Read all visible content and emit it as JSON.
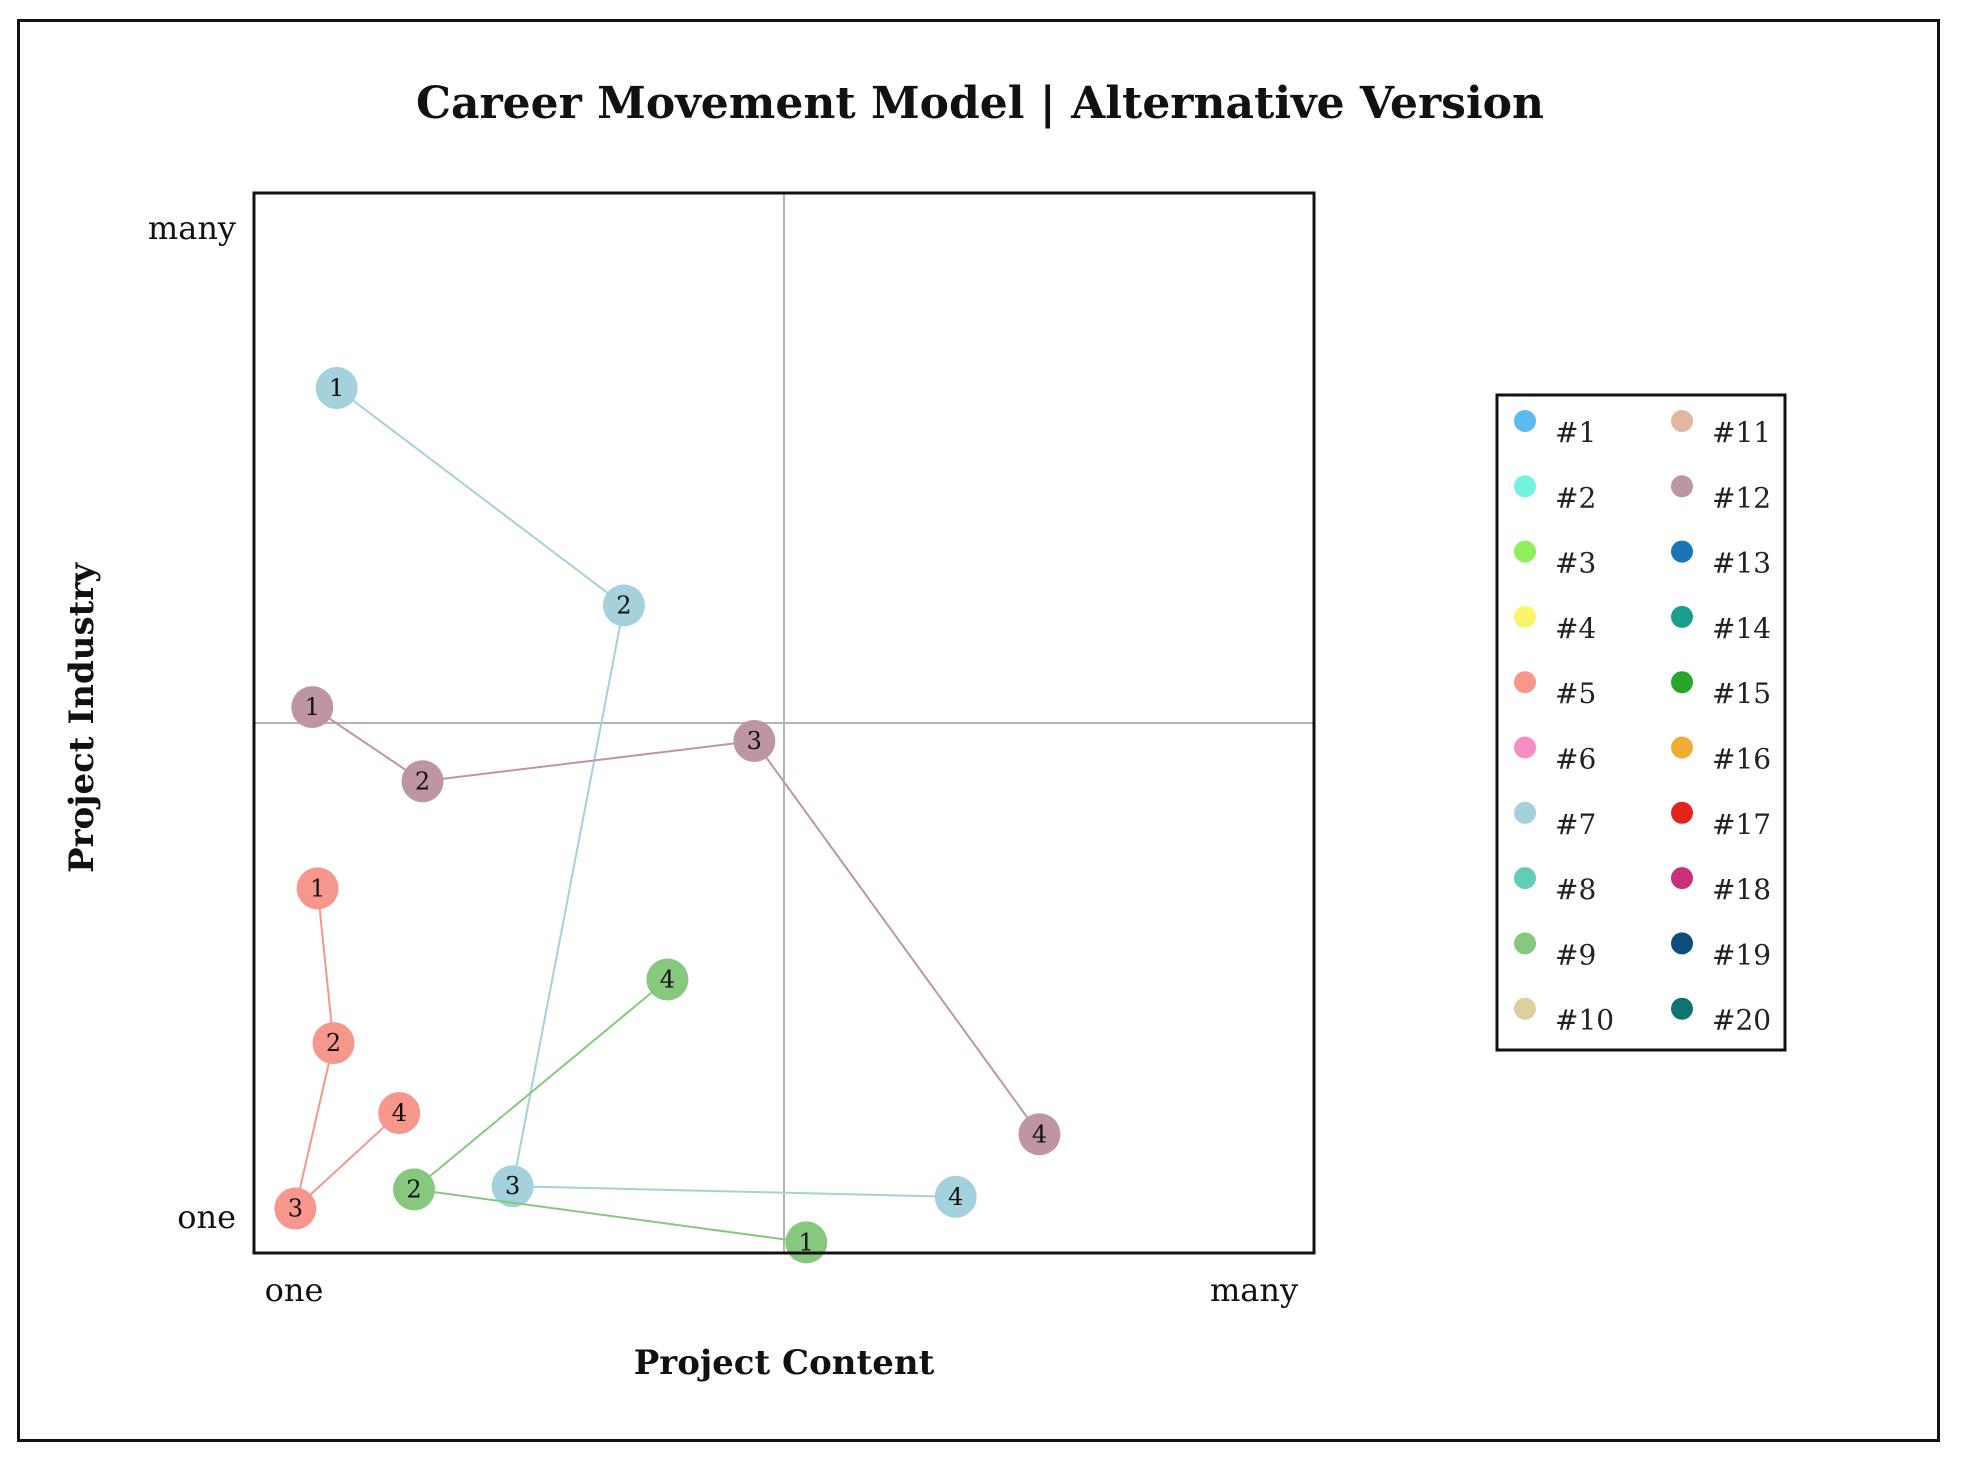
{
  "chart_data": {
    "type": "scatter",
    "title": "Career Movement Model | Alternative Version",
    "xlabel": "Project Content",
    "ylabel": "Project Industry",
    "x_ticks": [
      "one",
      "many"
    ],
    "y_ticks": [
      "one",
      "many"
    ],
    "xlim": [
      0,
      1
    ],
    "ylim": [
      0,
      1
    ],
    "midlines": {
      "x": 0.5,
      "y": 0.5
    },
    "grid": false,
    "legend_position": "right",
    "legend_columns": 2,
    "legend": [
      {
        "label": "#1",
        "color": "#5bbcf0"
      },
      {
        "label": "#2",
        "color": "#74f2e0"
      },
      {
        "label": "#3",
        "color": "#8ef05a"
      },
      {
        "label": "#4",
        "color": "#fbf46c"
      },
      {
        "label": "#5",
        "color": "#f7978c"
      },
      {
        "label": "#6",
        "color": "#f88cc5"
      },
      {
        "label": "#7",
        "color": "#a3d1dc"
      },
      {
        "label": "#8",
        "color": "#61cdb9"
      },
      {
        "label": "#9",
        "color": "#86c97e"
      },
      {
        "label": "#10",
        "color": "#ddd09e"
      },
      {
        "label": "#11",
        "color": "#e4b59f"
      },
      {
        "label": "#12",
        "color": "#be95a5"
      },
      {
        "label": "#13",
        "color": "#1974b8"
      },
      {
        "label": "#14",
        "color": "#1b9e8e"
      },
      {
        "label": "#15",
        "color": "#2aa52b"
      },
      {
        "label": "#16",
        "color": "#f0ad34"
      },
      {
        "label": "#17",
        "color": "#e3231c"
      },
      {
        "label": "#18",
        "color": "#c93079"
      },
      {
        "label": "#19",
        "color": "#0e4e7d"
      },
      {
        "label": "#20",
        "color": "#0f7372"
      }
    ],
    "series": [
      {
        "color": "#a3d1dc",
        "points": [
          {
            "label": "1",
            "x": 0.078,
            "y": 0.816
          },
          {
            "label": "2",
            "x": 0.349,
            "y": 0.611
          },
          {
            "label": "3",
            "x": 0.244,
            "y": 0.063
          },
          {
            "label": "4",
            "x": 0.662,
            "y": 0.053
          }
        ]
      },
      {
        "color": "#be95a5",
        "points": [
          {
            "label": "1",
            "x": 0.055,
            "y": 0.515
          },
          {
            "label": "2",
            "x": 0.159,
            "y": 0.445
          },
          {
            "label": "3",
            "x": 0.472,
            "y": 0.483
          },
          {
            "label": "4",
            "x": 0.741,
            "y": 0.112
          }
        ]
      },
      {
        "color": "#f7978c",
        "points": [
          {
            "label": "1",
            "x": 0.06,
            "y": 0.344
          },
          {
            "label": "2",
            "x": 0.075,
            "y": 0.198
          },
          {
            "label": "3",
            "x": 0.039,
            "y": 0.042
          },
          {
            "label": "4",
            "x": 0.137,
            "y": 0.132
          }
        ]
      },
      {
        "color": "#86c97e",
        "points": [
          {
            "label": "1",
            "x": 0.521,
            "y": 0.01
          },
          {
            "label": "2",
            "x": 0.151,
            "y": 0.06
          },
          {
            "label": "4",
            "x": 0.39,
            "y": 0.258
          }
        ]
      }
    ]
  }
}
